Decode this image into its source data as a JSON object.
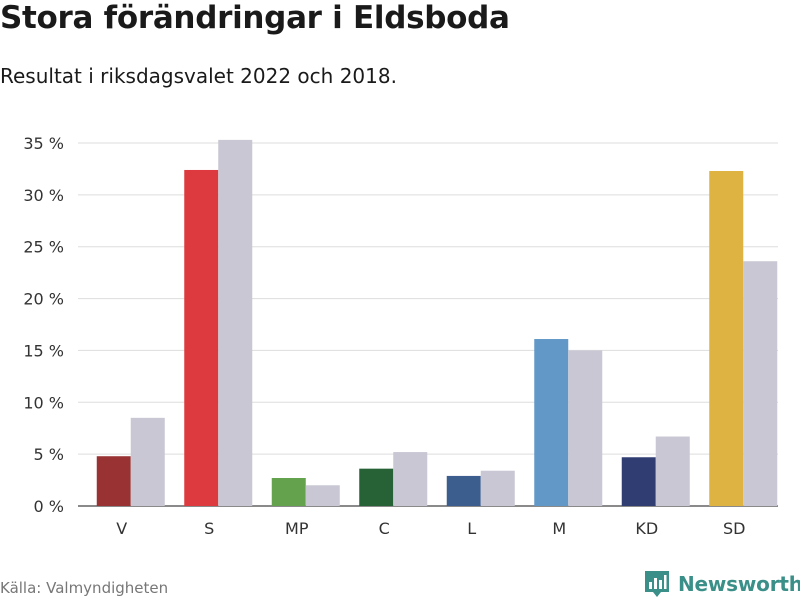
{
  "title": "Stora förändringar i Eldsboda",
  "subtitle": "Resultat i riksdagsvalet 2022 och 2018.",
  "source": "Källa: Valmyndigheten",
  "brand": "Newsworthy",
  "brand_color": "#3a8f88",
  "chart_data": {
    "type": "bar",
    "categories": [
      "V",
      "S",
      "MP",
      "C",
      "L",
      "M",
      "KD",
      "SD"
    ],
    "series": [
      {
        "values": [
          4.8,
          32.4,
          2.7,
          3.6,
          2.9,
          16.1,
          4.7,
          32.3
        ],
        "colors": [
          "#993333",
          "#dd3a3f",
          "#64a24d",
          "#266235",
          "#3c5e8e",
          "#6298c8",
          "#2f3d72",
          "#dfb342"
        ]
      },
      {
        "values": [
          8.5,
          35.3,
          2.0,
          5.2,
          3.4,
          15.0,
          6.7,
          23.6
        ],
        "color": "#c8c7d3"
      }
    ],
    "ylim": [
      0,
      35
    ],
    "yticks": [
      0,
      5,
      10,
      15,
      20,
      25,
      30,
      35
    ],
    "ytick_labels": [
      "0 %",
      "5 %",
      "10 %",
      "15 %",
      "20 %",
      "25 %",
      "30 %",
      "35 %"
    ],
    "grid": true,
    "legend": "none"
  }
}
